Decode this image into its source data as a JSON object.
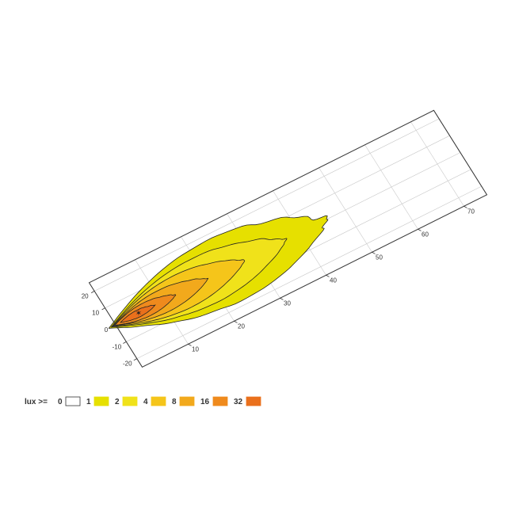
{
  "chart_data": {
    "type": "heatmap",
    "description_kind": "isolux contour plot on ground plane (oblique view)",
    "x_axis": {
      "ticks": [
        "10",
        "20",
        "30",
        "40",
        "50",
        "60",
        "70"
      ],
      "range": [
        0,
        75
      ]
    },
    "y_axis": {
      "ticks": [
        "20",
        "10",
        "0",
        "-10",
        "-20"
      ],
      "range": [
        -25,
        25
      ]
    },
    "grid": true,
    "source_marker": {
      "x": 5,
      "y": 0
    },
    "legend": {
      "prefix": "lux >=",
      "entries": [
        {
          "label": "0",
          "color": "#ffffff"
        },
        {
          "label": "1",
          "color": "#e6e000"
        },
        {
          "label": "2",
          "color": "#f0e21a"
        },
        {
          "label": "4",
          "color": "#f5c51a"
        },
        {
          "label": "8",
          "color": "#f2a91c"
        },
        {
          "label": "16",
          "color": "#ef8a1d"
        },
        {
          "label": "32",
          "color": "#ea701c"
        }
      ]
    },
    "contour_levels": [
      1,
      2,
      4,
      8,
      16,
      32
    ]
  }
}
